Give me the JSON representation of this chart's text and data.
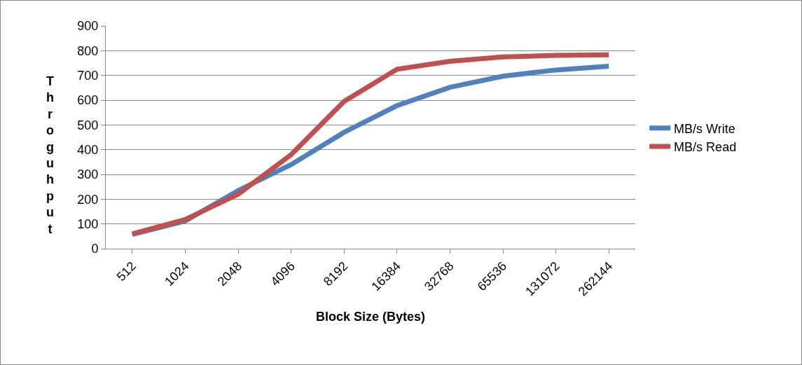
{
  "chart_data": {
    "type": "line",
    "xlabel": "Block Size (Bytes)",
    "ylabel": "Throguhput",
    "categories": [
      "512",
      "1024",
      "2048",
      "4096",
      "8192",
      "16384",
      "32768",
      "65536",
      "131072",
      "262144"
    ],
    "series": [
      {
        "name": "MB/s Write",
        "color": "#4f81bd",
        "values": [
          58,
          112,
          235,
          340,
          470,
          578,
          652,
          697,
          722,
          737
        ]
      },
      {
        "name": "MB/s Read",
        "color": "#c0504d",
        "values": [
          60,
          118,
          220,
          380,
          595,
          725,
          757,
          775,
          781,
          783
        ]
      }
    ],
    "ylim": [
      0,
      900
    ],
    "yticks": [
      0,
      100,
      200,
      300,
      400,
      500,
      600,
      700,
      800,
      900
    ],
    "grid": "y",
    "legend": "right",
    "marker": "none",
    "line_style": "solid"
  }
}
